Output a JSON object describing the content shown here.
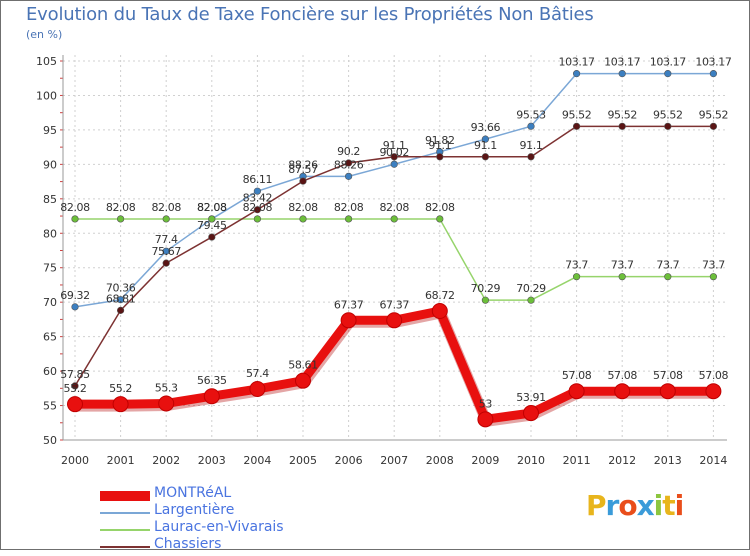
{
  "title": "Evolution du Taux de Taxe Foncière sur les Propriétés Non Bâties",
  "unit_label": "(en %)",
  "logo": {
    "text": "Proxiti",
    "colors": [
      "#e8b51c",
      "#3a9bd9",
      "#e94e1b",
      "#3a9bd9",
      "#8cc63f",
      "#e8b51c",
      "#e94e1b"
    ]
  },
  "chart_data": {
    "type": "line",
    "title": "Evolution du Taux de Taxe Foncière sur les Propriétés Non Bâties",
    "ylabel": "(en %)",
    "xlabel": "",
    "ylim": [
      50,
      105
    ],
    "yticks": [
      50,
      55,
      60,
      65,
      70,
      75,
      80,
      85,
      90,
      95,
      100,
      105
    ],
    "categories": [
      "2000",
      "2001",
      "2002",
      "2003",
      "2004",
      "2005",
      "2006",
      "2007",
      "2008",
      "2009",
      "2010",
      "2011",
      "2012",
      "2013",
      "2014"
    ],
    "legend_position": "bottom-left",
    "series": [
      {
        "name": "MONTRéAL",
        "color": "#e8100f",
        "marker_color": "#e8100f",
        "thick": true,
        "values": [
          55.2,
          55.2,
          55.3,
          56.35,
          57.4,
          58.61,
          67.37,
          67.37,
          68.72,
          53,
          53.91,
          57.08,
          57.08,
          57.08,
          57.08
        ],
        "labels": [
          "55.2",
          "55.2",
          "55.3",
          "56.35",
          "57.4",
          "58.61",
          "67.37",
          "67.37",
          "68.72",
          "53",
          "53.91",
          "57.08",
          "57.08",
          "57.08",
          "57.08"
        ]
      },
      {
        "name": "Largentière",
        "color": "#7ba7d6",
        "marker_color": "#3c7fc0",
        "thick": false,
        "values": [
          69.32,
          70.36,
          77.4,
          82.08,
          86.11,
          88.26,
          88.26,
          90.02,
          91.82,
          93.66,
          95.53,
          103.17,
          103.17,
          103.17,
          103.17
        ],
        "labels": [
          "69.32",
          "70.36",
          "77.4",
          "82.08",
          "86.11",
          "88.26",
          "88.26",
          "90.02",
          "91.82",
          "93.66",
          "95.53",
          "103.17",
          "103.17",
          "103.17",
          "103.17"
        ]
      },
      {
        "name": "Laurac-en-Vivarais",
        "color": "#96d46b",
        "marker_color": "#6cbf3a",
        "thick": false,
        "values": [
          82.08,
          82.08,
          82.08,
          82.08,
          82.08,
          82.08,
          82.08,
          82.08,
          82.08,
          70.29,
          70.29,
          73.7,
          73.7,
          73.7,
          73.7
        ],
        "labels": [
          "82.08",
          "82.08",
          "82.08",
          "82.08",
          "82.08",
          "82.08",
          "82.08",
          "82.08",
          "82.08",
          "70.29",
          "70.29",
          "73.7",
          "73.7",
          "73.7",
          "73.7"
        ]
      },
      {
        "name": "Chassiers",
        "color": "#7d3232",
        "marker_color": "#5a1414",
        "thick": false,
        "values": [
          57.85,
          68.81,
          75.67,
          79.45,
          83.42,
          87.57,
          90.2,
          91.1,
          91.1,
          91.1,
          91.1,
          95.52,
          95.52,
          95.52,
          95.52
        ],
        "labels": [
          "57.85",
          "68.81",
          "75.67",
          "79.45",
          "83.42",
          "87.57",
          "90.2",
          "91.1",
          "91.1",
          "91.1",
          "91.1",
          "95.52",
          "95.52",
          "95.52",
          "95.52"
        ]
      }
    ]
  }
}
